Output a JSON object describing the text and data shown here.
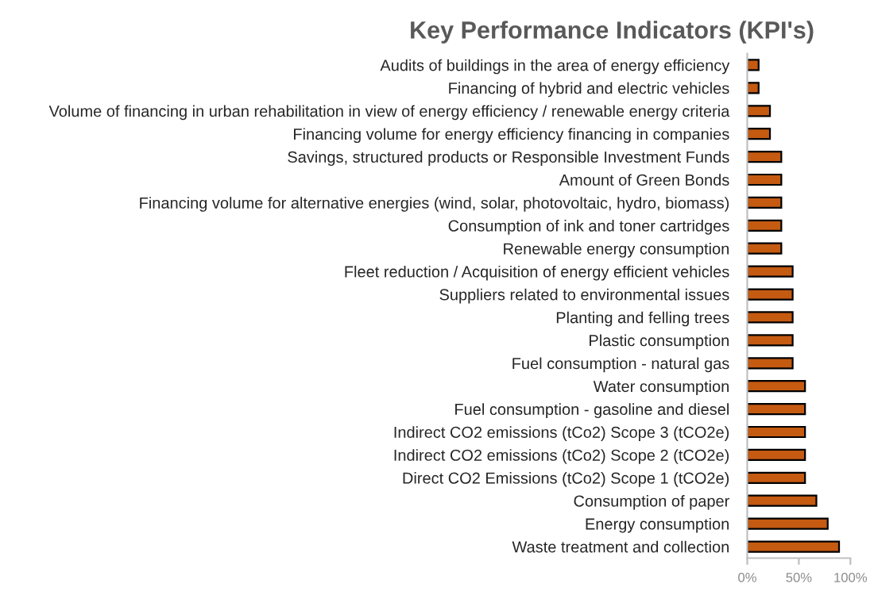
{
  "chart_data": {
    "type": "bar",
    "orientation": "horizontal",
    "title": "Key Performance Indicators (KPI's)",
    "categories": [
      "Audits of buildings in the area of energy efficiency",
      "Financing of hybrid and electric vehicles",
      "Volume of financing in urban rehabilitation in view of energy efficiency / renewable energy criteria",
      "Financing volume for energy efficiency financing in companies",
      "Savings, structured products or Responsible Investment Funds",
      "Amount of Green Bonds",
      "Financing volume for alternative energies (wind, solar, photovoltaic, hydro, biomass)",
      "Consumption of ink and toner cartridges",
      "Renewable energy consumption",
      "Fleet reduction / Acquisition of energy efficient vehicles",
      "Suppliers related to environmental issues",
      "Planting and felling trees",
      "Plastic consumption",
      "Fuel consumption - natural gas",
      "Water consumption",
      "Fuel consumption - gasoline and diesel",
      "Indirect CO2 emissions (tCo2) Scope 3 (tCO2e)",
      "Indirect CO2 emissions (tCo2) Scope 2 (tCO2e)",
      "Direct CO2 Emissions (tCo2) Scope 1 (tCO2e)",
      "Consumption of paper",
      "Energy consumption",
      "Waste treatment and collection"
    ],
    "values": [
      11,
      11,
      22,
      22,
      33,
      33,
      33,
      33,
      33,
      44,
      44,
      44,
      44,
      44,
      56,
      56,
      56,
      56,
      56,
      67,
      78,
      89
    ],
    "color": "#c55a11",
    "xlim": [
      0,
      100
    ],
    "xticks": [
      {
        "value": 0,
        "label": "0%"
      },
      {
        "value": 50,
        "label": "50%"
      },
      {
        "value": 100,
        "label": "100%"
      }
    ],
    "grid": false,
    "legend": false
  }
}
